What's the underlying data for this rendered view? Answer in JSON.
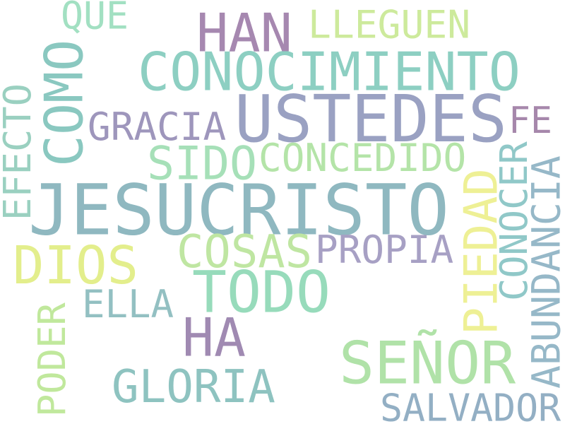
{
  "background": "#ffffff",
  "words": [
    {
      "text": "JESUCRISTO",
      "color": "#8fb8c0",
      "orientation": "horizontal"
    },
    {
      "text": "USTEDES",
      "color": "#9aa1c2",
      "orientation": "horizontal"
    },
    {
      "text": "CONOCIMIENTO",
      "color": "#8dcfc2",
      "orientation": "horizontal"
    },
    {
      "text": "TODO",
      "color": "#97dbbb",
      "orientation": "horizontal"
    },
    {
      "text": "SEÑOR",
      "color": "#b0e2a8",
      "orientation": "horizontal"
    },
    {
      "text": "HAN",
      "color": "#a688b0",
      "orientation": "horizontal"
    },
    {
      "text": "HA",
      "color": "#a08ab2",
      "orientation": "horizontal"
    },
    {
      "text": "DIOS",
      "color": "#e3ee8c",
      "orientation": "horizontal"
    },
    {
      "text": "COMO",
      "color": "#8ac8c0",
      "orientation": "vertical"
    },
    {
      "text": "COSAS",
      "color": "#bfe6a2",
      "orientation": "horizontal"
    },
    {
      "text": "GLORIA",
      "color": "#8ec3c0",
      "orientation": "horizontal"
    },
    {
      "text": "SIDO",
      "color": "#a6e0b8",
      "orientation": "horizontal"
    },
    {
      "text": "CONCEDIDO",
      "color": "#b4e4a8",
      "orientation": "horizontal"
    },
    {
      "text": "SALVADOR",
      "color": "#93afc4",
      "orientation": "horizontal"
    },
    {
      "text": "GRACIA",
      "color": "#9e96bc",
      "orientation": "horizontal"
    },
    {
      "text": "PROPIA",
      "color": "#a7a0c4",
      "orientation": "horizontal"
    },
    {
      "text": "LLEGUEN",
      "color": "#cdea9c",
      "orientation": "horizontal"
    },
    {
      "text": "ELLA",
      "color": "#93c0c2",
      "orientation": "horizontal"
    },
    {
      "text": "QUE",
      "color": "#a2e0c2",
      "orientation": "horizontal"
    },
    {
      "text": "FE",
      "color": "#a687ab",
      "orientation": "horizontal"
    },
    {
      "text": "EFECTO",
      "color": "#9ad0c0",
      "orientation": "vertical"
    },
    {
      "text": "PIEDAD",
      "color": "#eef095",
      "orientation": "vertical"
    },
    {
      "text": "CONOCER",
      "color": "#90c8c8",
      "orientation": "vertical"
    },
    {
      "text": "ABUNDANCIA",
      "color": "#96b8c8",
      "orientation": "vertical"
    },
    {
      "text": "PODER",
      "color": "#c0e89c",
      "orientation": "vertical"
    }
  ]
}
